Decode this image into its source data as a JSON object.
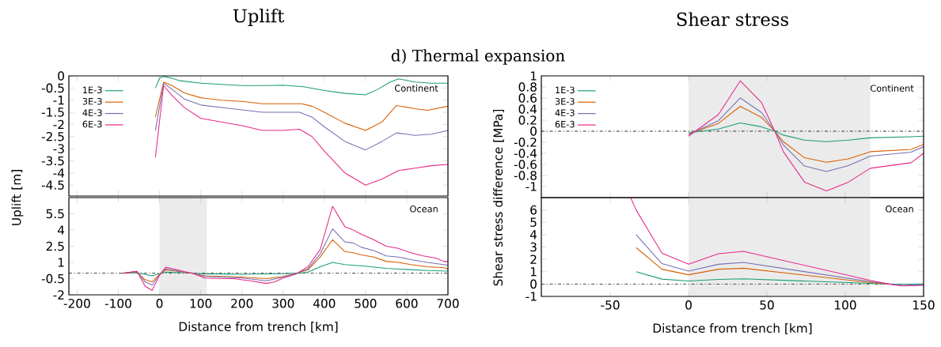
{
  "chart_data": [
    {
      "type": "line",
      "title": "Uplift",
      "subtitle": "d) Thermal expansion",
      "annotations": [
        "Continent"
      ],
      "legend": "top left",
      "tick_labels": "y",
      "xlim": [
        -220,
        700
      ],
      "xticks": [
        -200,
        -100,
        0,
        100,
        200,
        300,
        400,
        500,
        600,
        700
      ],
      "ylim": [
        -4.95,
        0
      ],
      "yticks": [
        0,
        -0.5,
        -1,
        -1.5,
        -2,
        -2.5,
        -3,
        -3.5,
        -4,
        -4.5
      ],
      "series": [
        {
          "name": "1E-3",
          "color": "#1b9e77",
          "x": [
            -10,
            0,
            10,
            30,
            50,
            100,
            150,
            200,
            250,
            300,
            350,
            400,
            450,
            500,
            530,
            560,
            580,
            620,
            660,
            700
          ],
          "values": [
            -0.5,
            -0.1,
            -0.02,
            -0.1,
            -0.2,
            -0.3,
            -0.35,
            -0.4,
            -0.4,
            -0.38,
            -0.45,
            -0.6,
            -0.72,
            -0.78,
            -0.55,
            -0.25,
            -0.12,
            -0.25,
            -0.3,
            -0.3
          ]
        },
        {
          "name": "3E-3",
          "color": "#d95f02",
          "x": [
            -10,
            10,
            30,
            60,
            100,
            150,
            200,
            250,
            300,
            345,
            370,
            400,
            450,
            500,
            540,
            575,
            620,
            650,
            700
          ],
          "values": [
            -1.7,
            -0.25,
            -0.4,
            -0.7,
            -0.9,
            -1.0,
            -1.05,
            -1.15,
            -1.15,
            -1.15,
            -1.25,
            -1.5,
            -1.95,
            -2.25,
            -1.9,
            -1.22,
            -1.35,
            -1.42,
            -1.25
          ]
        },
        {
          "name": "4E-3",
          "color": "#7570b3",
          "x": [
            -10,
            10,
            30,
            60,
            100,
            150,
            200,
            250,
            300,
            340,
            370,
            400,
            450,
            500,
            540,
            575,
            620,
            660,
            700
          ],
          "values": [
            -2.25,
            -0.3,
            -0.55,
            -0.95,
            -1.2,
            -1.3,
            -1.4,
            -1.5,
            -1.5,
            -1.5,
            -1.7,
            -2.1,
            -2.7,
            -3.05,
            -2.7,
            -2.35,
            -2.45,
            -2.4,
            -2.25
          ]
        },
        {
          "name": "6E-3",
          "color": "#e7298a",
          "x": [
            -10,
            10,
            30,
            60,
            100,
            150,
            200,
            250,
            280,
            300,
            340,
            370,
            400,
            450,
            500,
            540,
            580,
            620,
            660,
            700
          ],
          "values": [
            -3.35,
            -0.4,
            -0.8,
            -1.3,
            -1.75,
            -1.9,
            -2.05,
            -2.25,
            -2.25,
            -2.25,
            -2.2,
            -2.5,
            -3.1,
            -4.0,
            -4.5,
            -4.25,
            -3.9,
            -3.8,
            -3.7,
            -3.65
          ]
        }
      ]
    },
    {
      "type": "line",
      "ylabel": "Uplift [m]",
      "xlabel": "Distance from trench [km]",
      "annotations": [
        "Ocean"
      ],
      "xlim": [
        -220,
        700
      ],
      "xticks": [
        -200,
        -100,
        0,
        100,
        200,
        300,
        400,
        500,
        600,
        700
      ],
      "ylim": [
        -2,
        7
      ],
      "yticks": [
        -2,
        -0.5,
        1,
        2.5,
        4,
        5.5
      ],
      "bands": [
        {
          "axis": "x",
          "from": 0,
          "to": 115,
          "color": "#ebebeb"
        }
      ],
      "ref_lines": [
        {
          "axis": "y",
          "value": 0,
          "color": "#555555"
        }
      ],
      "series": [
        {
          "color": "#1b9e77",
          "x": [
            -90,
            -55,
            -18,
            0,
            15,
            60,
            100,
            200,
            300,
            340,
            360,
            390,
            420,
            450,
            500,
            550,
            600,
            650,
            700
          ],
          "values": [
            0,
            0.05,
            -0.25,
            -0.05,
            0.1,
            0.05,
            -0.05,
            -0.1,
            -0.05,
            0,
            0.1,
            0.6,
            1.0,
            0.8,
            0.65,
            0.45,
            0.35,
            0.25,
            0.2
          ]
        },
        {
          "color": "#d95f02",
          "x": [
            -90,
            -70,
            -55,
            -35,
            -18,
            0,
            15,
            40,
            60,
            80,
            110,
            150,
            200,
            260,
            300,
            330,
            360,
            390,
            420,
            450,
            470,
            490,
            520,
            550,
            580,
            610,
            650,
            690,
            700
          ],
          "values": [
            0,
            0.08,
            0.12,
            -0.6,
            -0.8,
            -0.1,
            0.3,
            0.2,
            0.08,
            0,
            -0.25,
            -0.3,
            -0.35,
            -0.5,
            -0.3,
            -0.05,
            0.3,
            1.5,
            3.1,
            2.0,
            1.9,
            1.7,
            1.5,
            1.1,
            1.0,
            0.8,
            0.6,
            0.5,
            0.4
          ]
        },
        {
          "color": "#7570b3",
          "x": [
            -90,
            -70,
            -55,
            -35,
            -18,
            0,
            15,
            40,
            60,
            80,
            110,
            150,
            200,
            260,
            300,
            330,
            360,
            390,
            420,
            450,
            470,
            490,
            520,
            550,
            580,
            610,
            650,
            690,
            700
          ],
          "values": [
            0,
            0.1,
            0.15,
            -0.8,
            -1.1,
            -0.15,
            0.4,
            0.25,
            0.1,
            0,
            -0.3,
            -0.35,
            -0.45,
            -0.7,
            -0.35,
            -0.05,
            0.4,
            1.8,
            4.1,
            2.9,
            2.8,
            2.4,
            2.1,
            1.6,
            1.5,
            1.25,
            1.0,
            0.8,
            0.75
          ]
        },
        {
          "color": "#e7298a",
          "x": [
            -90,
            -70,
            -55,
            -35,
            -18,
            0,
            15,
            35,
            60,
            80,
            110,
            150,
            180,
            220,
            260,
            280,
            300,
            330,
            360,
            390,
            420,
            450,
            465,
            490,
            520,
            550,
            580,
            610,
            640,
            670,
            690,
            700
          ],
          "values": [
            0,
            0.1,
            0.2,
            -1.2,
            -1.6,
            -0.2,
            0.55,
            0.4,
            0.15,
            0,
            -0.45,
            -0.5,
            -0.5,
            -0.7,
            -0.95,
            -0.8,
            -0.45,
            -0.1,
            0.6,
            2.2,
            6.2,
            4.3,
            4.1,
            3.6,
            3.1,
            2.5,
            2.3,
            1.9,
            1.6,
            1.4,
            1.1,
            1.1
          ]
        }
      ]
    },
    {
      "type": "line",
      "title": "Shear stress",
      "annotations": [
        "Continent"
      ],
      "legend": "top left",
      "tick_labels": "y",
      "xlim": [
        -94,
        150
      ],
      "xticks": [
        -50,
        0,
        50,
        100,
        150
      ],
      "ylim": [
        -1.2,
        1
      ],
      "yticks": [
        1,
        0.8,
        0.6,
        0.4,
        0.2,
        0,
        -0.2,
        -0.4,
        -0.6,
        -0.8,
        -1
      ],
      "bands": [
        {
          "axis": "x",
          "from": 0,
          "to": 116,
          "color": "#ebebeb"
        }
      ],
      "ref_lines": [
        {
          "axis": "y",
          "value": 0,
          "color": "#333333"
        }
      ],
      "series": [
        {
          "name": "1E-3",
          "color": "#1b9e77",
          "x": [
            0,
            19,
            33,
            46.5,
            55,
            60.5,
            74,
            88,
            102,
            116,
            142,
            150
          ],
          "values": [
            -0.03,
            0.04,
            0.15,
            0.08,
            0,
            -0.07,
            -0.16,
            -0.19,
            -0.16,
            -0.12,
            -0.1,
            -0.09
          ]
        },
        {
          "name": "3E-3",
          "color": "#d95f02",
          "x": [
            0,
            19,
            33,
            46.5,
            55,
            60.5,
            74,
            88,
            102,
            116,
            142,
            150
          ],
          "values": [
            -0.05,
            0.14,
            0.45,
            0.25,
            0,
            -0.19,
            -0.48,
            -0.56,
            -0.5,
            -0.37,
            -0.33,
            -0.24
          ]
        },
        {
          "name": "4E-3",
          "color": "#7570b3",
          "x": [
            0,
            19,
            33,
            46.5,
            55,
            60.5,
            74,
            88,
            102,
            116,
            142,
            150
          ],
          "values": [
            -0.06,
            0.19,
            0.6,
            0.34,
            0,
            -0.25,
            -0.63,
            -0.73,
            -0.62,
            -0.45,
            -0.38,
            -0.28
          ]
        },
        {
          "name": "6E-3",
          "color": "#e7298a",
          "x": [
            0,
            19,
            33,
            46.5,
            55,
            60.5,
            74,
            88,
            102,
            116,
            142,
            150
          ],
          "values": [
            -0.09,
            0.3,
            0.91,
            0.52,
            0,
            -0.37,
            -0.92,
            -1.08,
            -0.92,
            -0.67,
            -0.57,
            -0.4
          ]
        }
      ]
    },
    {
      "type": "line",
      "ylabel": "Shear stress difference [MPa]",
      "xlabel": "Distance from trench [km]",
      "annotations": [
        "Ocean"
      ],
      "xlim": [
        -94,
        150
      ],
      "xticks": [
        -50,
        0,
        50,
        100,
        150
      ],
      "ylim": [
        -1,
        7
      ],
      "yticks": [
        -1,
        0,
        1,
        2,
        3,
        4,
        5,
        6
      ],
      "bands": [
        {
          "axis": "x",
          "from": 0,
          "to": 116,
          "color": "#ebebeb"
        }
      ],
      "ref_lines": [
        {
          "axis": "y",
          "value": 0,
          "color": "#555555"
        }
      ],
      "series": [
        {
          "color": "#1b9e77",
          "x": [
            -33.5,
            -17,
            0,
            19,
            35,
            116,
            128,
            136,
            150
          ],
          "values": [
            1.0,
            0.4,
            0.25,
            0.38,
            0.42,
            0.05,
            0,
            -0.03,
            0
          ]
        },
        {
          "color": "#d95f02",
          "x": [
            -33.5,
            -17,
            0,
            19,
            35,
            116,
            128
          ],
          "values": [
            2.95,
            1.2,
            0.75,
            1.2,
            1.28,
            0.12,
            0
          ]
        },
        {
          "color": "#7570b3",
          "x": [
            -33.5,
            -17,
            0,
            19,
            35,
            116,
            128,
            136,
            150
          ],
          "values": [
            4.0,
            1.65,
            1.05,
            1.6,
            1.75,
            0.2,
            0,
            -0.1,
            -0.05
          ]
        },
        {
          "color": "#e7298a",
          "x": [
            -37,
            -33.5,
            -17,
            0,
            19,
            35,
            116,
            128,
            136,
            150
          ],
          "values": [
            7.0,
            6.0,
            2.5,
            1.6,
            2.45,
            2.65,
            0.3,
            0,
            -0.15,
            -0.1
          ]
        }
      ]
    }
  ]
}
